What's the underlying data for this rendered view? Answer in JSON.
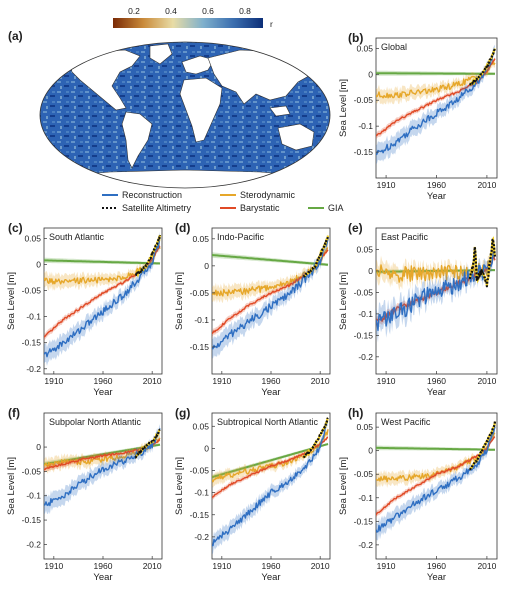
{
  "colormap": {
    "ticks": [
      "0.2",
      "0.4",
      "0.6",
      "0.8"
    ],
    "label": "r",
    "stops": [
      "#7a2a06",
      "#c98a3a",
      "#e8dca6",
      "#7fb0cc",
      "#3c6fb0",
      "#0c2f78"
    ]
  },
  "map_panel": {
    "label": "(a)"
  },
  "legend": [
    {
      "name": "Reconstruction",
      "color": "#2f6fc2"
    },
    {
      "name": "Sterodynamic",
      "color": "#e6a72a"
    },
    {
      "name": "Satellite Altimetry",
      "color": "#111111"
    },
    {
      "name": "Barystatic",
      "color": "#e04a26"
    },
    {
      "name": "GIA",
      "color": "#66a844"
    }
  ],
  "chart_data": [
    {
      "type": "line",
      "label": "(b)",
      "title": "Global",
      "xlabel": "Year",
      "ylabel": "Sea Level [m]",
      "xlim": [
        1900,
        2020
      ],
      "ylim": [
        -0.2,
        0.07
      ],
      "xticks": [
        "1910",
        "1960",
        "2010"
      ],
      "yticks": [
        "-0.15",
        "-0.1",
        "-0.05",
        "0",
        "0.05"
      ],
      "series": [
        {
          "name": "Reconstruction",
          "x": [
            1900,
            1920,
            1940,
            1960,
            1980,
            2000,
            2010,
            2018
          ],
          "y": [
            -0.155,
            -0.13,
            -0.1,
            -0.075,
            -0.05,
            -0.015,
            0.01,
            0.045
          ]
        },
        {
          "name": "Sterodynamic",
          "x": [
            1900,
            1920,
            1940,
            1960,
            1980,
            2000,
            2010,
            2018
          ],
          "y": [
            -0.04,
            -0.04,
            -0.035,
            -0.03,
            -0.02,
            -0.005,
            0.005,
            0.025
          ]
        },
        {
          "name": "Barystatic",
          "x": [
            1900,
            1920,
            1940,
            1960,
            1980,
            2000,
            2010,
            2018
          ],
          "y": [
            -0.12,
            -0.09,
            -0.07,
            -0.05,
            -0.035,
            -0.015,
            0.005,
            0.03
          ]
        },
        {
          "name": "GIA",
          "x": [
            1900,
            2018
          ],
          "y": [
            0.002,
            0.001
          ]
        },
        {
          "name": "Satellite Altimetry",
          "x": [
            1993,
            2000,
            2005,
            2010,
            2015,
            2018
          ],
          "y": [
            -0.02,
            -0.01,
            0.0,
            0.015,
            0.035,
            0.05
          ]
        }
      ]
    },
    {
      "type": "line",
      "label": "(c)",
      "title": "South Atlantic",
      "xlabel": "Year",
      "ylabel": "Sea Level [m]",
      "xlim": [
        1900,
        2020
      ],
      "ylim": [
        -0.21,
        0.07
      ],
      "xticks": [
        "1910",
        "1960",
        "2010"
      ],
      "yticks": [
        "-0.2",
        "-0.15",
        "-0.1",
        "-0.05",
        "0",
        "0.05"
      ],
      "series": [
        {
          "name": "Reconstruction",
          "x": [
            1900,
            1920,
            1940,
            1960,
            1980,
            2000,
            2010,
            2018
          ],
          "y": [
            -0.175,
            -0.15,
            -0.12,
            -0.09,
            -0.06,
            -0.02,
            0.005,
            0.05
          ]
        },
        {
          "name": "Sterodynamic",
          "x": [
            1900,
            1920,
            1940,
            1960,
            1980,
            2000,
            2010,
            2018
          ],
          "y": [
            -0.03,
            -0.035,
            -0.03,
            -0.03,
            -0.025,
            -0.01,
            0.01,
            0.035
          ]
        },
        {
          "name": "Barystatic",
          "x": [
            1900,
            1920,
            1940,
            1960,
            1980,
            2000,
            2010,
            2018
          ],
          "y": [
            -0.14,
            -0.105,
            -0.08,
            -0.055,
            -0.035,
            -0.01,
            0.01,
            0.035
          ]
        },
        {
          "name": "GIA",
          "x": [
            1900,
            2018
          ],
          "y": [
            0.008,
            0.002
          ]
        },
        {
          "name": "Satellite Altimetry",
          "x": [
            1993,
            2000,
            2005,
            2010,
            2015,
            2018
          ],
          "y": [
            -0.02,
            -0.01,
            0.0,
            0.02,
            0.04,
            0.055
          ]
        }
      ]
    },
    {
      "type": "line",
      "label": "(d)",
      "title": "Indo-Pacific",
      "xlabel": "Year",
      "ylabel": "Sea Level [m]",
      "xlim": [
        1900,
        2020
      ],
      "ylim": [
        -0.2,
        0.07
      ],
      "xticks": [
        "1910",
        "1960",
        "2010"
      ],
      "yticks": [
        "-0.15",
        "-0.1",
        "-0.05",
        "0",
        "0.05"
      ],
      "series": [
        {
          "name": "Reconstruction",
          "x": [
            1900,
            1920,
            1940,
            1960,
            1980,
            2000,
            2010,
            2018
          ],
          "y": [
            -0.155,
            -0.125,
            -0.1,
            -0.075,
            -0.05,
            -0.015,
            0.01,
            0.05
          ]
        },
        {
          "name": "Sterodynamic",
          "x": [
            1900,
            1920,
            1940,
            1960,
            1980,
            2000,
            2010,
            2018
          ],
          "y": [
            -0.05,
            -0.05,
            -0.045,
            -0.04,
            -0.03,
            -0.01,
            0.01,
            0.035
          ]
        },
        {
          "name": "Barystatic",
          "x": [
            1900,
            1920,
            1940,
            1960,
            1980,
            2000,
            2010,
            2018
          ],
          "y": [
            -0.125,
            -0.095,
            -0.07,
            -0.05,
            -0.035,
            -0.01,
            0.01,
            0.03
          ]
        },
        {
          "name": "GIA",
          "x": [
            1900,
            2018
          ],
          "y": [
            0.02,
            0.002
          ]
        },
        {
          "name": "Satellite Altimetry",
          "x": [
            1993,
            2000,
            2005,
            2010,
            2015,
            2018
          ],
          "y": [
            -0.02,
            -0.01,
            0.0,
            0.02,
            0.04,
            0.055
          ]
        }
      ]
    },
    {
      "type": "line",
      "label": "(e)",
      "title": "East Pacific",
      "xlabel": "Year",
      "ylabel": "Sea Level [m]",
      "xlim": [
        1900,
        2020
      ],
      "ylim": [
        -0.24,
        0.1
      ],
      "xticks": [
        "1910",
        "1960",
        "2010"
      ],
      "yticks": [
        "-0.2",
        "-0.15",
        "-0.1",
        "-0.05",
        "0",
        "0.05"
      ],
      "series": [
        {
          "name": "Reconstruction",
          "x": [
            1900,
            1920,
            1940,
            1960,
            1980,
            2000,
            2010,
            2018
          ],
          "y": [
            -0.12,
            -0.1,
            -0.07,
            -0.05,
            -0.03,
            -0.01,
            0.0,
            0.04
          ]
        },
        {
          "name": "Sterodynamic",
          "x": [
            1900,
            1920,
            1940,
            1960,
            1980,
            2000,
            2010,
            2018
          ],
          "y": [
            0.0,
            -0.01,
            -0.005,
            -0.005,
            -0.005,
            0.0,
            0.005,
            0.04
          ]
        },
        {
          "name": "Barystatic",
          "x": [
            1900,
            1920,
            1940,
            1960,
            1980,
            2000,
            2010,
            2018
          ],
          "y": [
            -0.12,
            -0.09,
            -0.07,
            -0.05,
            -0.03,
            -0.01,
            0.005,
            0.03
          ]
        },
        {
          "name": "GIA",
          "x": [
            1900,
            2018
          ],
          "y": [
            -0.002,
            0.002
          ]
        },
        {
          "name": "Satellite Altimetry",
          "x": [
            1993,
            1997,
            1998,
            2000,
            2005,
            2010,
            2012,
            2015,
            2016,
            2018
          ],
          "y": [
            -0.02,
            0.02,
            0.06,
            -0.02,
            0.0,
            -0.03,
            0.0,
            0.06,
            0.08,
            0.03
          ]
        }
      ]
    },
    {
      "type": "line",
      "label": "(f)",
      "title": "Subpolar North Atlantic",
      "xlabel": "Year",
      "ylabel": "Sea Level [m]",
      "xlim": [
        1900,
        2020
      ],
      "ylim": [
        -0.23,
        0.07
      ],
      "xticks": [
        "1910",
        "1960",
        "2010"
      ],
      "yticks": [
        "-0.2",
        "-0.15",
        "-0.1",
        "-0.05",
        "0"
      ],
      "series": [
        {
          "name": "Reconstruction",
          "x": [
            1900,
            1920,
            1940,
            1960,
            1980,
            2000,
            2010,
            2018
          ],
          "y": [
            -0.12,
            -0.1,
            -0.07,
            -0.045,
            -0.03,
            -0.01,
            0.005,
            0.035
          ]
        },
        {
          "name": "Sterodynamic",
          "x": [
            1900,
            1920,
            1940,
            1960,
            1980,
            2000,
            2010,
            2018
          ],
          "y": [
            -0.04,
            -0.03,
            -0.03,
            -0.025,
            -0.02,
            -0.005,
            0.005,
            0.02
          ]
        },
        {
          "name": "Barystatic",
          "x": [
            1900,
            1920,
            1940,
            1960,
            1980,
            2000,
            2010,
            2018
          ],
          "y": [
            -0.045,
            -0.035,
            -0.025,
            -0.018,
            -0.012,
            -0.004,
            0.003,
            0.015
          ]
        },
        {
          "name": "GIA",
          "x": [
            1900,
            2018
          ],
          "y": [
            -0.035,
            0.005
          ]
        },
        {
          "name": "Satellite Altimetry",
          "x": [
            1993,
            2000,
            2005,
            2010,
            2015,
            2018
          ],
          "y": [
            -0.02,
            -0.005,
            0.005,
            0.01,
            0.025,
            0.035
          ]
        }
      ]
    },
    {
      "type": "line",
      "label": "(g)",
      "title": "Subtropical North Atlantic",
      "xlabel": "Year",
      "ylabel": "Sea Level [m]",
      "xlim": [
        1900,
        2020
      ],
      "ylim": [
        -0.25,
        0.08
      ],
      "xticks": [
        "1910",
        "1960",
        "2010"
      ],
      "yticks": [
        "-0.2",
        "-0.15",
        "-0.1",
        "-0.05",
        "0",
        "0.05"
      ],
      "series": [
        {
          "name": "Reconstruction",
          "x": [
            1900,
            1920,
            1940,
            1960,
            1980,
            2000,
            2010,
            2018
          ],
          "y": [
            -0.215,
            -0.18,
            -0.14,
            -0.1,
            -0.07,
            -0.03,
            0.005,
            0.065
          ]
        },
        {
          "name": "Sterodynamic",
          "x": [
            1900,
            1920,
            1940,
            1960,
            1980,
            2000,
            2010,
            2018
          ],
          "y": [
            -0.07,
            -0.06,
            -0.05,
            -0.04,
            -0.03,
            -0.01,
            0.01,
            0.04
          ]
        },
        {
          "name": "Barystatic",
          "x": [
            1900,
            1920,
            1940,
            1960,
            1980,
            2000,
            2010,
            2018
          ],
          "y": [
            -0.11,
            -0.08,
            -0.06,
            -0.04,
            -0.025,
            -0.005,
            0.01,
            0.025
          ]
        },
        {
          "name": "GIA",
          "x": [
            1900,
            2018
          ],
          "y": [
            -0.065,
            0.01
          ]
        },
        {
          "name": "Satellite Altimetry",
          "x": [
            1993,
            2000,
            2005,
            2010,
            2015,
            2018
          ],
          "y": [
            -0.02,
            -0.005,
            0.01,
            0.03,
            0.05,
            0.07
          ]
        }
      ]
    },
    {
      "type": "line",
      "label": "(h)",
      "title": "West Pacific",
      "xlabel": "Year",
      "ylabel": "Sea Level [m]",
      "xlim": [
        1900,
        2020
      ],
      "ylim": [
        -0.23,
        0.08
      ],
      "xticks": [
        "1910",
        "1960",
        "2010"
      ],
      "yticks": [
        "-0.2",
        "-0.15",
        "-0.1",
        "-0.05",
        "0",
        "0.05"
      ],
      "series": [
        {
          "name": "Reconstruction",
          "x": [
            1900,
            1920,
            1940,
            1960,
            1980,
            2000,
            2010,
            2018
          ],
          "y": [
            -0.17,
            -0.14,
            -0.11,
            -0.085,
            -0.06,
            -0.03,
            0.0,
            0.055
          ]
        },
        {
          "name": "Sterodynamic",
          "x": [
            1900,
            1920,
            1940,
            1960,
            1980,
            2000,
            2010,
            2018
          ],
          "y": [
            -0.06,
            -0.06,
            -0.055,
            -0.05,
            -0.035,
            -0.015,
            0.005,
            0.04
          ]
        },
        {
          "name": "Barystatic",
          "x": [
            1900,
            1920,
            1940,
            1960,
            1980,
            2000,
            2010,
            2018
          ],
          "y": [
            -0.135,
            -0.1,
            -0.075,
            -0.05,
            -0.035,
            -0.012,
            0.005,
            0.03
          ]
        },
        {
          "name": "GIA",
          "x": [
            1900,
            2018
          ],
          "y": [
            0.006,
            0.002
          ]
        },
        {
          "name": "Satellite Altimetry",
          "x": [
            1993,
            2000,
            2005,
            2010,
            2015,
            2018
          ],
          "y": [
            -0.04,
            -0.02,
            0.0,
            0.02,
            0.04,
            0.06
          ]
        }
      ]
    }
  ]
}
